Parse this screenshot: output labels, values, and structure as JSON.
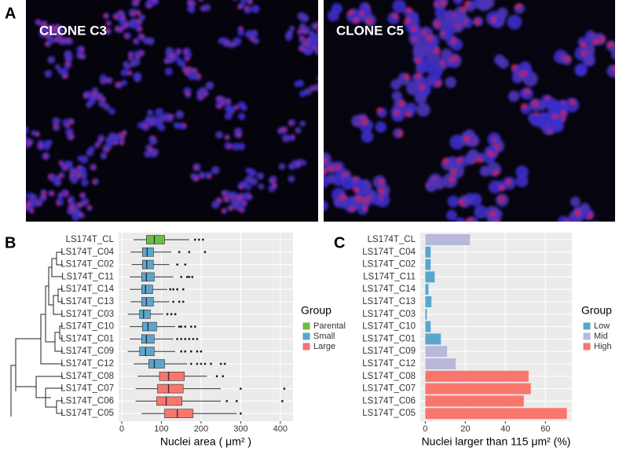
{
  "panels": {
    "a": "A",
    "b": "B",
    "c": "C"
  },
  "images": [
    {
      "label": "CLONE C3"
    },
    {
      "label": "CLONE C5"
    }
  ],
  "chart_data": [
    {
      "type": "boxplot",
      "xlabel": "Nuclei area ( μm² )",
      "legend_title": "Group",
      "categories": [
        "LS174T_CL",
        "LS174T_C04",
        "LS174T_C02",
        "LS174T_C11",
        "LS174T_C14",
        "LS174T_C13",
        "LS174T_C03",
        "LS174T_C10",
        "LS174T_C01",
        "LS174T_C09",
        "LS174T_C12",
        "LS174T_C08",
        "LS174T_C07",
        "LS174T_C06",
        "LS174T_C05"
      ],
      "xlim": [
        -8,
        432
      ],
      "xticks": [
        0,
        100,
        200,
        300,
        400
      ],
      "grid": true,
      "series": [
        {
          "name": "Parental",
          "color": "#6cbd45",
          "values": [
            {
              "min": 30,
              "q1": 62,
              "median": 82,
              "q3": 108,
              "max": 170,
              "outliers": [
                185,
                195,
                205
              ]
            },
            null,
            null,
            null,
            null,
            null,
            null,
            null,
            null,
            null,
            null,
            null,
            null,
            null,
            null
          ]
        },
        {
          "name": "Small",
          "color": "#5aa6cf",
          "values": [
            null,
            {
              "min": 22,
              "q1": 52,
              "median": 64,
              "q3": 80,
              "max": 125,
              "outliers": [
                145,
                170,
                210
              ]
            },
            {
              "min": 25,
              "q1": 52,
              "median": 63,
              "q3": 80,
              "max": 120,
              "outliers": [
                140,
                160
              ]
            },
            {
              "min": 20,
              "q1": 50,
              "median": 62,
              "q3": 82,
              "max": 130,
              "outliers": [
                150,
                165,
                170,
                178
              ]
            },
            {
              "min": 20,
              "q1": 50,
              "median": 60,
              "q3": 78,
              "max": 115,
              "outliers": [
                122,
                130,
                140,
                155
              ]
            },
            {
              "min": 22,
              "q1": 50,
              "median": 62,
              "q3": 80,
              "max": 120,
              "outliers": [
                130,
                145,
                155
              ]
            },
            {
              "min": 15,
              "q1": 45,
              "median": 55,
              "q3": 72,
              "max": 105,
              "outliers": [
                115,
                125,
                135
              ]
            },
            {
              "min": 20,
              "q1": 52,
              "median": 66,
              "q3": 88,
              "max": 135,
              "outliers": [
                145,
                150,
                160,
                175,
                185
              ]
            },
            {
              "min": 20,
              "q1": 50,
              "median": 62,
              "q3": 82,
              "max": 130,
              "outliers": [
                140,
                150,
                160,
                170,
                180,
                190
              ]
            },
            {
              "min": 15,
              "q1": 45,
              "median": 60,
              "q3": 82,
              "max": 135,
              "outliers": [
                150,
                160,
                175,
                190,
                200
              ]
            },
            {
              "min": 30,
              "q1": 68,
              "median": 82,
              "q3": 108,
              "max": 165,
              "outliers": [
                175,
                190,
                200,
                210,
                225,
                250,
                260
              ]
            },
            null,
            null,
            null,
            null
          ]
        },
        {
          "name": "Large",
          "color": "#f8766d",
          "values": [
            null,
            null,
            null,
            null,
            null,
            null,
            null,
            null,
            null,
            null,
            null,
            {
              "min": 40,
              "q1": 95,
              "median": 118,
              "q3": 158,
              "max": 215,
              "outliers": [
                240,
                255
              ]
            },
            {
              "min": 35,
              "q1": 90,
              "median": 118,
              "q3": 155,
              "max": 250,
              "outliers": [
                300,
                410
              ]
            },
            {
              "min": 35,
              "q1": 88,
              "median": 112,
              "q3": 152,
              "max": 250,
              "outliers": [
                265,
                290,
                405
              ]
            },
            {
              "min": 50,
              "q1": 108,
              "median": 140,
              "q3": 180,
              "max": 290,
              "outliers": [
                300
              ]
            }
          ]
        }
      ]
    },
    {
      "type": "barh",
      "xlabel": "Nuclei larger than 115 μm² (%)",
      "legend_title": "Group",
      "categories": [
        "LS174T_CL",
        "LS174T_C04",
        "LS174T_C02",
        "LS174T_C11",
        "LS174T_C14",
        "LS174T_C13",
        "LS174T_C03",
        "LS174T_C10",
        "LS174T_C01",
        "LS174T_C09",
        "LS174T_C12",
        "LS174T_C08",
        "LS174T_C07",
        "LS174T_C06",
        "LS174T_C05"
      ],
      "xlim": [
        -2.5,
        73.2
      ],
      "xticks": [
        0,
        20,
        40,
        60
      ],
      "grid": true,
      "series": [
        {
          "name": "Low",
          "color": "#5aa6cf",
          "values": [
            null,
            2.7,
            2.7,
            4.7,
            1.6,
            3.1,
            0.8,
            2.7,
            7.8,
            null,
            null,
            null,
            null,
            null,
            null
          ]
        },
        {
          "name": "Mid",
          "color": "#b8b8dc",
          "values": [
            22.3,
            null,
            null,
            null,
            null,
            null,
            null,
            null,
            null,
            10.9,
            15.2,
            null,
            null,
            null,
            null
          ]
        },
        {
          "name": "High",
          "color": "#f8766d",
          "values": [
            null,
            null,
            null,
            null,
            null,
            null,
            null,
            null,
            null,
            null,
            null,
            51.6,
            52.7,
            49.2,
            70.7
          ]
        }
      ]
    }
  ]
}
